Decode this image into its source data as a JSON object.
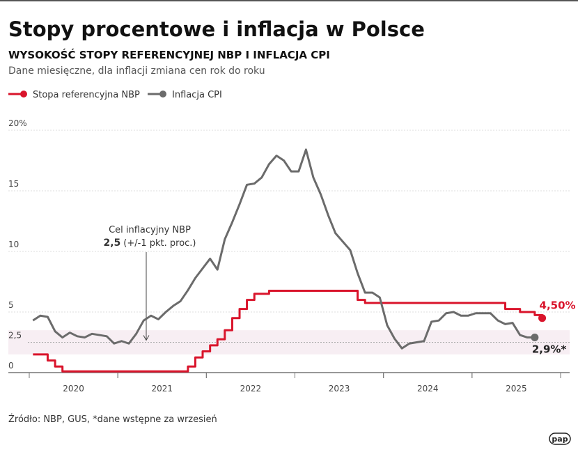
{
  "chart_data": {
    "type": "line",
    "title": "Stopy procentowe i inflacja w Polsce",
    "subtitle": "WYSOKOŚĆ STOPY REFERENCYJNEJ NBP I INFLACJA CPI",
    "note": "Dane miesięczne, dla inflacji zmiana cen rok do roku",
    "source": "Źródło: NBP, GUS, *dane wstępne za wrzesień",
    "logo": "pap",
    "annotation": {
      "line1": "Cel inflacyjny NBP",
      "bold": "2,5",
      "rest": "(+/-1 pkt. proc.)"
    },
    "target_band": [
      1.5,
      3.5
    ],
    "target": 2.5,
    "xlim": [
      2020,
      2026
    ],
    "xticks": [
      {
        "value": 2020.5,
        "label": "2020"
      },
      {
        "value": 2021.5,
        "label": "2021"
      },
      {
        "value": 2022.5,
        "label": "2022"
      },
      {
        "value": 2023.5,
        "label": "2023"
      },
      {
        "value": 2024.5,
        "label": "2024"
      },
      {
        "value": 2025.5,
        "label": "2025"
      }
    ],
    "ylim": [
      0,
      20
    ],
    "yticks": [
      0,
      {
        "value": 2.5,
        "label": "2,5"
      },
      5,
      10,
      15,
      {
        "value": 20,
        "label": "20%"
      }
    ],
    "grid": true,
    "x": [
      2020.042,
      2020.125,
      2020.208,
      2020.292,
      2020.375,
      2020.458,
      2020.542,
      2020.625,
      2020.708,
      2020.792,
      2020.875,
      2020.958,
      2021.042,
      2021.125,
      2021.208,
      2021.292,
      2021.375,
      2021.458,
      2021.542,
      2021.625,
      2021.708,
      2021.792,
      2021.875,
      2021.958,
      2022.042,
      2022.125,
      2022.208,
      2022.292,
      2022.375,
      2022.458,
      2022.542,
      2022.625,
      2022.708,
      2022.792,
      2022.875,
      2022.958,
      2023.042,
      2023.125,
      2023.208,
      2023.292,
      2023.375,
      2023.458,
      2023.542,
      2023.625,
      2023.708,
      2023.792,
      2023.875,
      2023.958,
      2024.042,
      2024.125,
      2024.208,
      2024.292,
      2024.375,
      2024.458,
      2024.542,
      2024.625,
      2024.708,
      2024.792,
      2024.875,
      2024.958,
      2025.042,
      2025.125,
      2025.208,
      2025.292,
      2025.375,
      2025.458,
      2025.542,
      2025.625,
      2025.708,
      2025.792
    ],
    "series": [
      {
        "name": "Stopa referencyjna NBP",
        "color": "#d9142b",
        "step": true,
        "values": [
          1.5,
          1.5,
          1.0,
          0.5,
          0.1,
          0.1,
          0.1,
          0.1,
          0.1,
          0.1,
          0.1,
          0.1,
          0.1,
          0.1,
          0.1,
          0.1,
          0.1,
          0.1,
          0.1,
          0.1,
          0.1,
          0.5,
          1.25,
          1.75,
          2.25,
          2.75,
          3.5,
          4.5,
          5.25,
          6.0,
          6.5,
          6.5,
          6.75,
          6.75,
          6.75,
          6.75,
          6.75,
          6.75,
          6.75,
          6.75,
          6.75,
          6.75,
          6.75,
          6.75,
          6.0,
          5.75,
          5.75,
          5.75,
          5.75,
          5.75,
          5.75,
          5.75,
          5.75,
          5.75,
          5.75,
          5.75,
          5.75,
          5.75,
          5.75,
          5.75,
          5.75,
          5.75,
          5.75,
          5.75,
          5.25,
          5.25,
          5.0,
          5.0,
          4.75,
          4.5
        ],
        "value_labels": [
          null,
          null,
          null,
          null,
          null,
          null,
          null,
          null,
          null,
          null,
          null,
          null,
          null,
          null,
          null,
          null,
          null,
          null,
          null,
          null,
          null,
          null,
          null,
          null,
          null,
          null,
          null,
          null,
          null,
          null,
          null,
          null,
          null,
          null,
          null,
          null,
          null,
          null,
          null,
          null,
          null,
          null,
          null,
          null,
          null,
          null,
          null,
          null,
          null,
          null,
          null,
          null,
          null,
          null,
          null,
          null,
          null,
          null,
          null,
          null,
          null,
          null,
          null,
          null,
          null,
          null,
          null,
          null,
          null,
          "4,50%"
        ]
      },
      {
        "name": "Inflacja CPI",
        "color": "#6b6b6b",
        "step": false,
        "values": [
          4.3,
          4.7,
          4.6,
          3.4,
          2.9,
          3.3,
          3.0,
          2.9,
          3.2,
          3.1,
          3.0,
          2.4,
          2.6,
          2.4,
          3.2,
          4.3,
          4.7,
          4.4,
          5.0,
          5.5,
          5.9,
          6.8,
          7.8,
          8.6,
          9.4,
          8.5,
          11.0,
          12.4,
          13.9,
          15.5,
          15.6,
          16.1,
          17.2,
          17.9,
          17.5,
          16.6,
          16.6,
          18.4,
          16.1,
          14.7,
          13.0,
          11.5,
          10.8,
          10.1,
          8.2,
          6.6,
          6.6,
          6.2,
          3.9,
          2.8,
          2.0,
          2.4,
          2.5,
          2.6,
          4.2,
          4.3,
          4.9,
          5.0,
          4.7,
          4.7,
          4.9,
          4.9,
          4.9,
          4.3,
          4.0,
          4.1,
          3.1,
          2.9,
          2.9,
          null
        ],
        "value_labels": [
          null,
          null,
          null,
          null,
          null,
          null,
          null,
          null,
          null,
          null,
          null,
          null,
          null,
          null,
          null,
          null,
          null,
          null,
          null,
          null,
          null,
          null,
          null,
          null,
          null,
          null,
          null,
          null,
          null,
          null,
          null,
          null,
          null,
          null,
          null,
          null,
          null,
          null,
          null,
          null,
          null,
          null,
          null,
          null,
          null,
          null,
          null,
          null,
          null,
          null,
          null,
          null,
          null,
          null,
          null,
          null,
          null,
          null,
          null,
          null,
          null,
          null,
          null,
          null,
          null,
          null,
          null,
          null,
          "2,9%*",
          null
        ]
      }
    ]
  }
}
